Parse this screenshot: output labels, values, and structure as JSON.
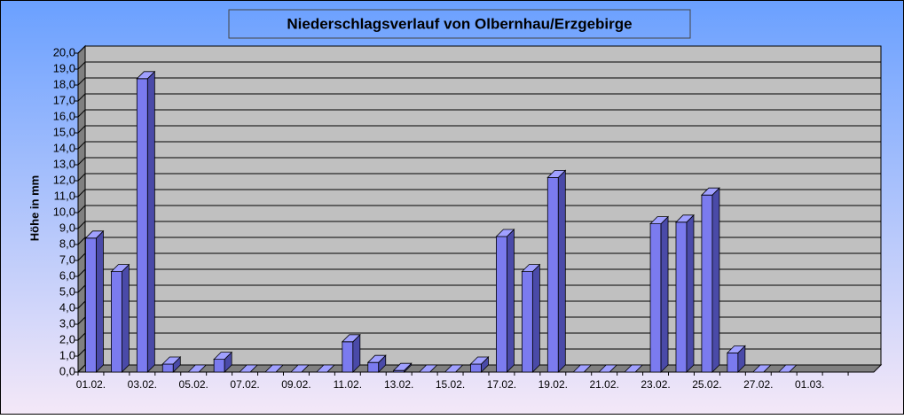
{
  "chart_data": {
    "type": "bar3d",
    "title": "Niederschlagsverlauf von Olbernhau/Erzgebirge",
    "y_label": "Höhe in  mm",
    "categories": [
      "01.02.",
      null,
      "03.02.",
      null,
      "05.02.",
      null,
      "07.02.",
      null,
      "09.02.",
      null,
      "11.02.",
      null,
      "13.02.",
      null,
      "15.02.",
      null,
      "17.02.",
      null,
      "19.02.",
      null,
      "21.02.",
      null,
      "23.02.",
      null,
      "25.02.",
      null,
      "27.02.",
      null,
      "01.03.",
      null,
      null
    ],
    "values": [
      8.4,
      6.3,
      18.4,
      0.5,
      0,
      0.8,
      0,
      0,
      0,
      0,
      1.9,
      0.6,
      0.1,
      0,
      0,
      0.5,
      8.5,
      6.3,
      12.2,
      0,
      0,
      0,
      9.3,
      9.4,
      11.1,
      1.2,
      0,
      0,
      null,
      null,
      null
    ],
    "color": "#7b7bef",
    "ylim": [
      0,
      20
    ],
    "yticks": [
      {
        "value": 0,
        "label": "0,0"
      },
      {
        "value": 1,
        "label": "1,0"
      },
      {
        "value": 2,
        "label": "2,0"
      },
      {
        "value": 3,
        "label": "3,0"
      },
      {
        "value": 4,
        "label": "4,0"
      },
      {
        "value": 5,
        "label": "5,0"
      },
      {
        "value": 6,
        "label": "6,0"
      },
      {
        "value": 7,
        "label": "7,0"
      },
      {
        "value": 8,
        "label": "8,0"
      },
      {
        "value": 9,
        "label": "9,0"
      },
      {
        "value": 10,
        "label": "10,0"
      },
      {
        "value": 11,
        "label": "11,0"
      },
      {
        "value": 12,
        "label": "12,0"
      },
      {
        "value": 13,
        "label": "13,0"
      },
      {
        "value": 14,
        "label": "14,0"
      },
      {
        "value": 15,
        "label": "15,0"
      },
      {
        "value": 16,
        "label": "16,0"
      },
      {
        "value": 17,
        "label": "17,0"
      },
      {
        "value": 18,
        "label": "18,0"
      },
      {
        "value": 19,
        "label": "19,0"
      },
      {
        "value": 20,
        "label": "20,0"
      }
    ],
    "grid": true
  }
}
